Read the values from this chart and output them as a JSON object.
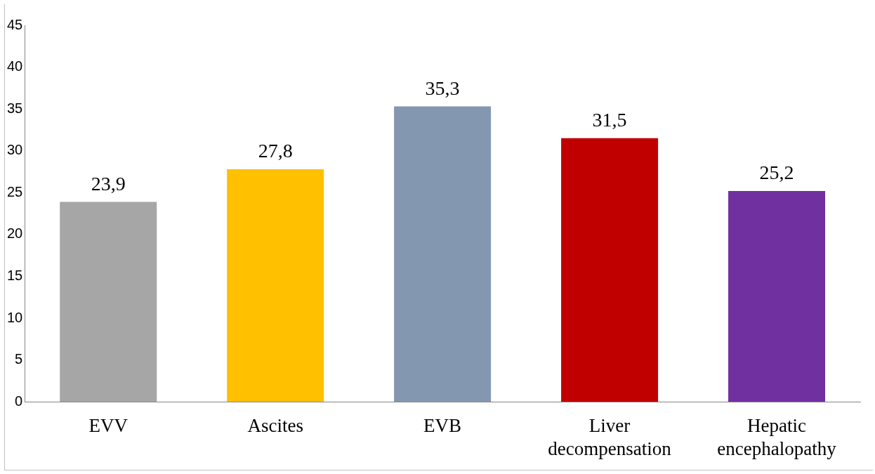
{
  "chart_data": {
    "type": "bar",
    "categories": [
      "EVV",
      "Ascites",
      "EVB",
      "Liver decompensation",
      "Hepatic encephalopathy"
    ],
    "values": [
      23.9,
      27.8,
      35.3,
      31.5,
      25.2
    ],
    "value_labels": [
      "23,9",
      "27,8",
      "35,3",
      "31,5",
      "25,2"
    ],
    "colors": [
      "#a6a6a6",
      "#ffc000",
      "#8497b0",
      "#c00000",
      "#7030a0"
    ],
    "ylim": [
      0,
      45
    ],
    "yticks": [
      0,
      5,
      10,
      15,
      20,
      25,
      30,
      35,
      40,
      45
    ],
    "grid": false,
    "legend": false
  }
}
